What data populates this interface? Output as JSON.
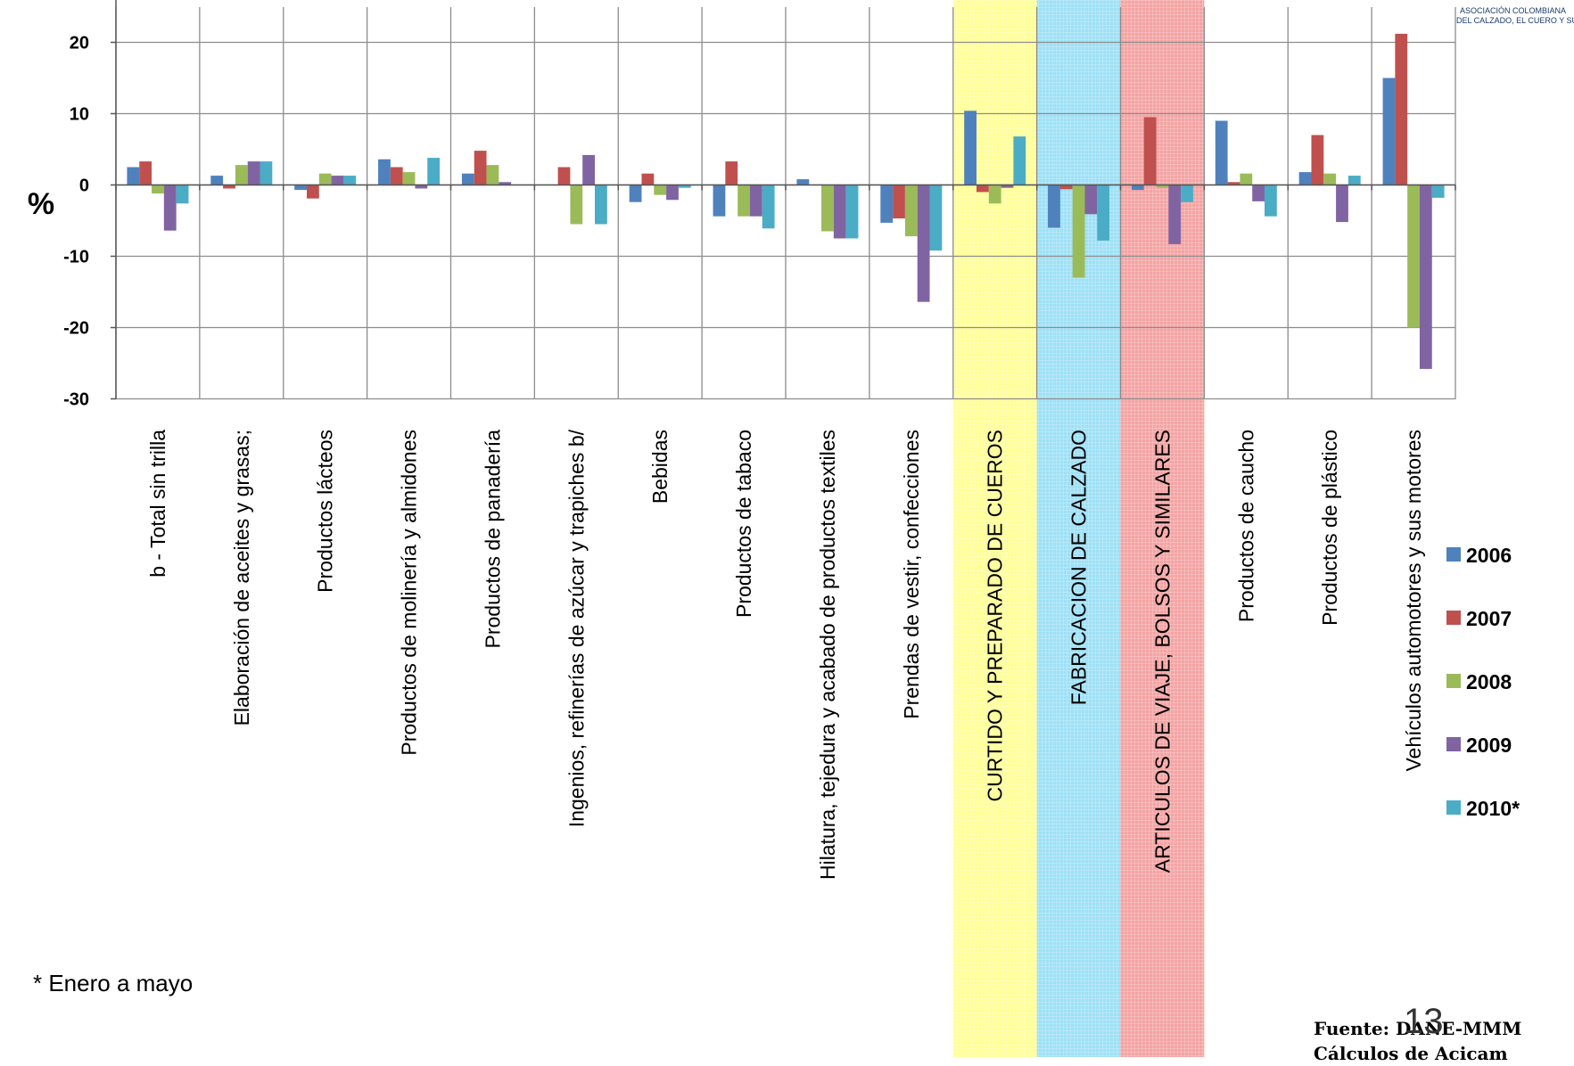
{
  "chart_data": {
    "type": "bar",
    "ylabel": "%",
    "ylim": [
      -30,
      25
    ],
    "yticks": [
      20,
      10,
      0,
      -10,
      -20,
      -30
    ],
    "grid": true,
    "legend_position": "right",
    "categories": [
      "b - Total sin trilla",
      "Elaboración de aceites y grasas;",
      "Productos lácteos",
      "Productos de molinería  y almidones",
      "Productos de panadería",
      "Ingenios, refinerías de azúcar y trapiches  b/",
      "Bebidas",
      "Productos de tabaco",
      "Hilatura, tejedura  y acabado de productos textiles",
      "Prendas de vestir, confecciones",
      "CURTIDO Y PREPARADO DE CUEROS",
      "FABRICACION DE CALZADO",
      "ARTICULOS DE VIAJE, BOLSOS Y SIMILARES",
      "Productos de caucho",
      "Productos de plástico",
      "Vehículos automotores y sus motores"
    ],
    "highlight_bands": [
      {
        "category_index": 10,
        "color": "#ffff99"
      },
      {
        "category_index": 11,
        "color": "#9ee0f5"
      },
      {
        "category_index": 12,
        "color": "#f4a3a3"
      }
    ],
    "series": [
      {
        "name": "2006",
        "color": "#4f81bd",
        "values": [
          2.5,
          1.3,
          -0.7,
          3.6,
          1.6,
          0,
          -2.4,
          -4.4,
          0.8,
          -5.3,
          10.4,
          -6.0,
          -0.7,
          9.0,
          1.8,
          15.0
        ]
      },
      {
        "name": "2007",
        "color": "#c0504d",
        "values": [
          3.3,
          -0.5,
          -1.9,
          2.5,
          4.8,
          2.5,
          1.6,
          3.3,
          0,
          -4.7,
          -1.0,
          -0.6,
          9.5,
          0.4,
          7.0,
          21.2
        ]
      },
      {
        "name": "2008",
        "color": "#9bbb59",
        "values": [
          -1.2,
          2.8,
          1.6,
          1.8,
          2.8,
          -5.5,
          -1.4,
          -4.4,
          -6.5,
          -7.2,
          -2.6,
          -13.0,
          -0.4,
          1.6,
          1.6,
          -20.0
        ]
      },
      {
        "name": "2009",
        "color": "#8064a2",
        "values": [
          -6.4,
          3.3,
          1.3,
          -0.5,
          0.4,
          4.2,
          -2.1,
          -4.4,
          -7.5,
          -16.4,
          -0.4,
          -4.1,
          -8.3,
          -2.3,
          -5.2,
          -25.8
        ]
      },
      {
        "name": "2010*",
        "color": "#4bacc6",
        "values": [
          -2.6,
          3.3,
          1.3,
          3.8,
          0,
          -5.5,
          -0.4,
          -6.1,
          -7.5,
          -9.2,
          6.8,
          -7.8,
          -2.4,
          -4.4,
          1.3,
          -1.8
        ]
      }
    ]
  },
  "note": "* Enero a mayo",
  "source_line1": "Fuente: DANE-MMM",
  "source_line2": "Cálculos de Acicam",
  "slide_number": "13",
  "logo": {
    "line1": "ASOCIACIÓN COLOMBIANA",
    "line2": "DEL CALZADO, EL CUERO Y SU"
  }
}
